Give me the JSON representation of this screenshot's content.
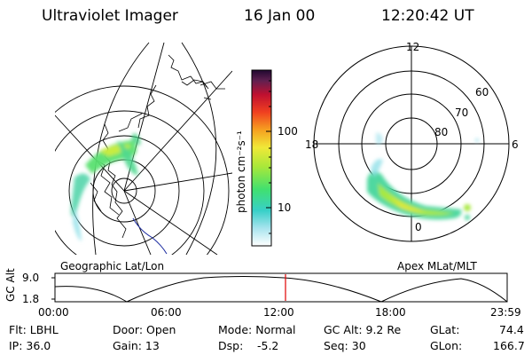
{
  "header": {
    "title": "Ultraviolet Imager",
    "date": "16 Jan 00",
    "time": "12:20:42 UT"
  },
  "colorbar": {
    "unit_label": "photon cm⁻²s⁻¹",
    "ticks": [
      "100",
      "10"
    ]
  },
  "geo_panel": {
    "label": "Geographic Lat/Lon"
  },
  "polar_panel": {
    "label": "Apex MLat/MLT",
    "mlt_labels": [
      "12",
      "18",
      "6",
      "0"
    ],
    "lat_labels": [
      "60",
      "70",
      "80"
    ]
  },
  "timeline": {
    "ylabel": "GC Alt",
    "y_ticks": [
      "9.0",
      "1.8"
    ],
    "x_ticks": [
      "00:00",
      "06:00",
      "12:00",
      "18:00",
      "23:59"
    ],
    "current_marker_color": "#e00000"
  },
  "footer": {
    "flt": "Flt: LBHL",
    "ip": "IP: 36.0",
    "door": "Door: Open",
    "gain": "Gain: 13",
    "mode": "Mode: Normal",
    "dsp_label": "Dsp:",
    "dsp_value": "-5.2",
    "gc_alt": "GC Alt: 9.2 Re",
    "seq": "Seq: 30",
    "glat_label": "GLat:",
    "glat_value": "74.4",
    "glon_label": "GLon:",
    "glon_value": "166.7"
  }
}
